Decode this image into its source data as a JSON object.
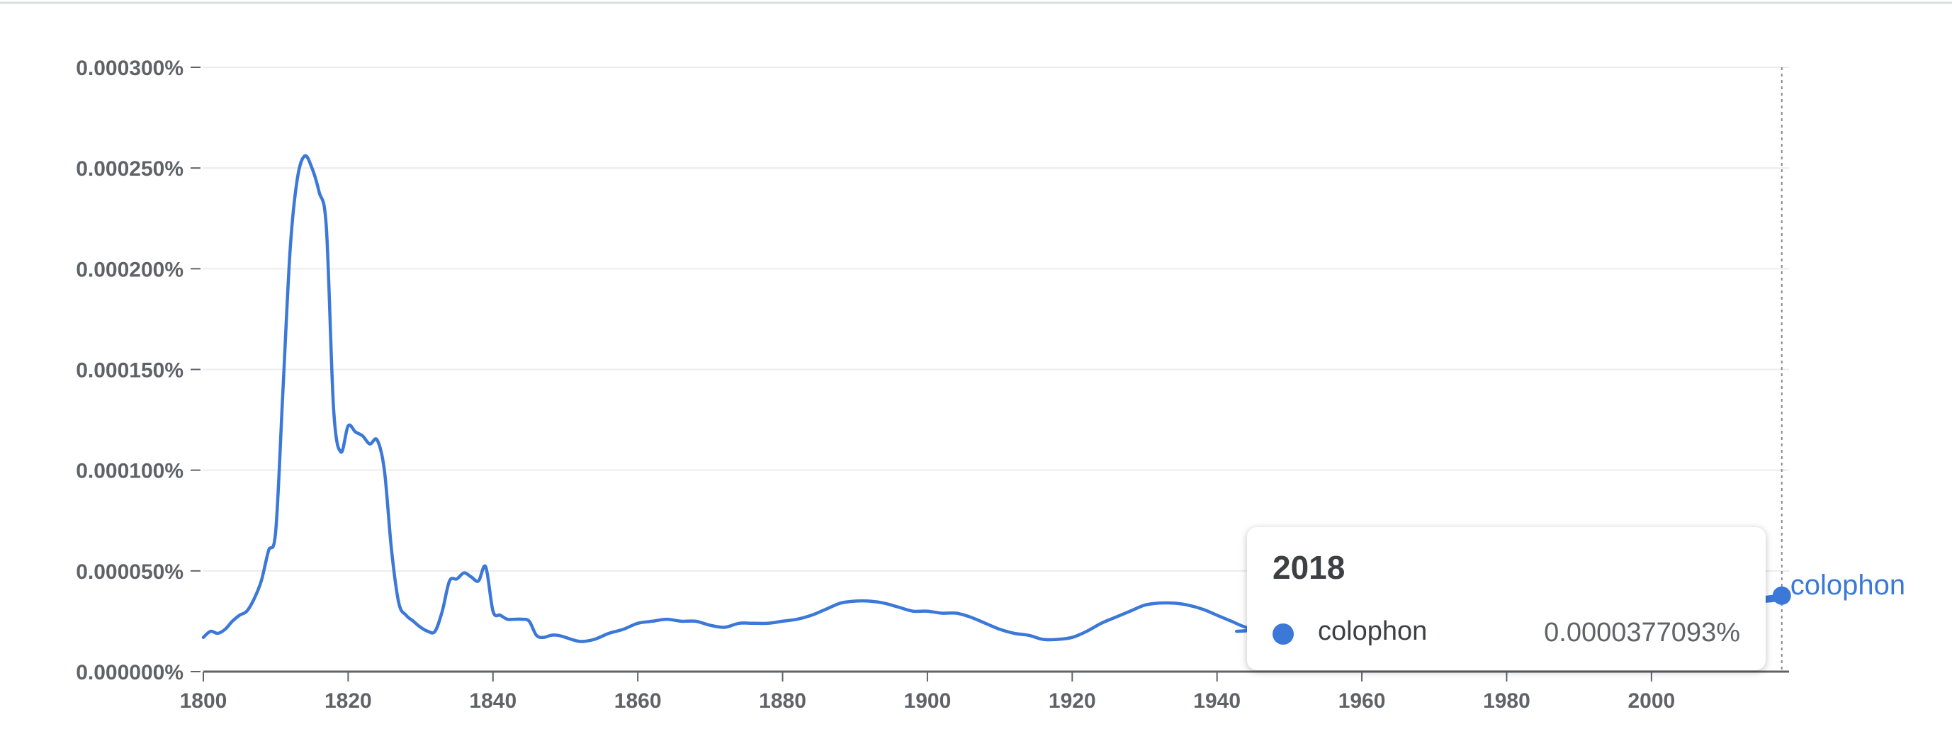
{
  "chart_data": {
    "type": "line",
    "title": "",
    "xlabel": "",
    "ylabel": "",
    "xlim": [
      1800,
      2019
    ],
    "ylim": [
      0,
      0.0003
    ],
    "y_ticks": [
      "0.000000%",
      "0.000050%",
      "0.000100%",
      "0.000150%",
      "0.000200%",
      "0.000250%",
      "0.000300%"
    ],
    "y_tick_values": [
      0,
      5e-05,
      0.0001,
      0.00015,
      0.0002,
      0.00025,
      0.0003
    ],
    "x_ticks": [
      "1800",
      "1820",
      "1840",
      "1860",
      "1880",
      "1900",
      "1920",
      "1940",
      "1960",
      "1980",
      "2000"
    ],
    "x_tick_values": [
      1800,
      1820,
      1840,
      1860,
      1880,
      1900,
      1920,
      1940,
      1960,
      1980,
      2000
    ],
    "grid": true,
    "series": [
      {
        "name": "colophon",
        "color": "#3b78d8",
        "points": [
          [
            1800,
            1.7e-05
          ],
          [
            1801,
            2e-05
          ],
          [
            1802,
            1.9e-05
          ],
          [
            1803,
            2.1e-05
          ],
          [
            1804,
            2.5e-05
          ],
          [
            1805,
            2.8e-05
          ],
          [
            1806,
            3e-05
          ],
          [
            1807,
            3.6e-05
          ],
          [
            1808,
            4.5e-05
          ],
          [
            1809,
            6e-05
          ],
          [
            1810,
            7e-05
          ],
          [
            1811,
            0.00014
          ],
          [
            1812,
            0.00021
          ],
          [
            1813,
            0.000245
          ],
          [
            1814,
            0.000256
          ],
          [
            1815,
            0.00025
          ],
          [
            1816,
            0.000238
          ],
          [
            1817,
            0.00022
          ],
          [
            1818,
            0.00013
          ],
          [
            1819,
            0.000109
          ],
          [
            1820,
            0.000122
          ],
          [
            1821,
            0.000119
          ],
          [
            1822,
            0.000117
          ],
          [
            1823,
            0.000113
          ],
          [
            1824,
            0.000115
          ],
          [
            1825,
            0.0001
          ],
          [
            1826,
            6e-05
          ],
          [
            1827,
            3.4e-05
          ],
          [
            1828,
            2.8e-05
          ],
          [
            1829,
            2.5e-05
          ],
          [
            1830,
            2.2e-05
          ],
          [
            1831,
            2e-05
          ],
          [
            1832,
            2e-05
          ],
          [
            1833,
            3e-05
          ],
          [
            1834,
            4.5e-05
          ],
          [
            1835,
            4.6e-05
          ],
          [
            1836,
            4.9e-05
          ],
          [
            1837,
            4.7e-05
          ],
          [
            1838,
            4.5e-05
          ],
          [
            1839,
            5.2e-05
          ],
          [
            1840,
            3e-05
          ],
          [
            1841,
            2.8e-05
          ],
          [
            1842,
            2.6e-05
          ],
          [
            1843,
            2.6e-05
          ],
          [
            1844,
            2.6e-05
          ],
          [
            1845,
            2.5e-05
          ],
          [
            1846,
            1.8e-05
          ],
          [
            1847,
            1.7e-05
          ],
          [
            1848,
            1.8e-05
          ],
          [
            1849,
            1.8e-05
          ],
          [
            1850,
            1.7e-05
          ],
          [
            1852,
            1.5e-05
          ],
          [
            1854,
            1.6e-05
          ],
          [
            1856,
            1.9e-05
          ],
          [
            1858,
            2.1e-05
          ],
          [
            1860,
            2.4e-05
          ],
          [
            1862,
            2.5e-05
          ],
          [
            1864,
            2.6e-05
          ],
          [
            1866,
            2.5e-05
          ],
          [
            1868,
            2.5e-05
          ],
          [
            1870,
            2.3e-05
          ],
          [
            1872,
            2.2e-05
          ],
          [
            1874,
            2.4e-05
          ],
          [
            1876,
            2.4e-05
          ],
          [
            1878,
            2.4e-05
          ],
          [
            1880,
            2.5e-05
          ],
          [
            1882,
            2.6e-05
          ],
          [
            1884,
            2.8e-05
          ],
          [
            1886,
            3.1e-05
          ],
          [
            1888,
            3.4e-05
          ],
          [
            1890,
            3.5e-05
          ],
          [
            1892,
            3.5e-05
          ],
          [
            1894,
            3.4e-05
          ],
          [
            1896,
            3.2e-05
          ],
          [
            1898,
            3e-05
          ],
          [
            1900,
            3e-05
          ],
          [
            1902,
            2.9e-05
          ],
          [
            1904,
            2.9e-05
          ],
          [
            1906,
            2.7e-05
          ],
          [
            1908,
            2.4e-05
          ],
          [
            1910,
            2.1e-05
          ],
          [
            1912,
            1.9e-05
          ],
          [
            1914,
            1.8e-05
          ],
          [
            1916,
            1.6e-05
          ],
          [
            1918,
            1.6e-05
          ],
          [
            1920,
            1.7e-05
          ],
          [
            1922,
            2e-05
          ],
          [
            1924,
            2.4e-05
          ],
          [
            1926,
            2.7e-05
          ],
          [
            1928,
            3e-05
          ],
          [
            1930,
            3.3e-05
          ],
          [
            1932,
            3.4e-05
          ],
          [
            1934,
            3.4e-05
          ],
          [
            1936,
            3.3e-05
          ],
          [
            1938,
            3.1e-05
          ],
          [
            1940,
            2.8e-05
          ],
          [
            1942,
            2.5e-05
          ],
          [
            1944,
            2.2e-05
          ],
          [
            1946,
            2.1e-05
          ],
          [
            1948,
            2.1e-05
          ],
          [
            2012,
            3.4e-05
          ],
          [
            2014,
            3.6e-05
          ],
          [
            2016,
            3.7e-05
          ],
          [
            2018,
            3.77093e-05
          ]
        ]
      }
    ],
    "hover_marker": {
      "x": 2018,
      "y": 3.77093e-05
    }
  },
  "tooltip": {
    "year": "2018",
    "series_name": "colophon",
    "value": "0.0000377093%",
    "dot_color": "#3b78d8"
  },
  "series_end_label": "colophon"
}
